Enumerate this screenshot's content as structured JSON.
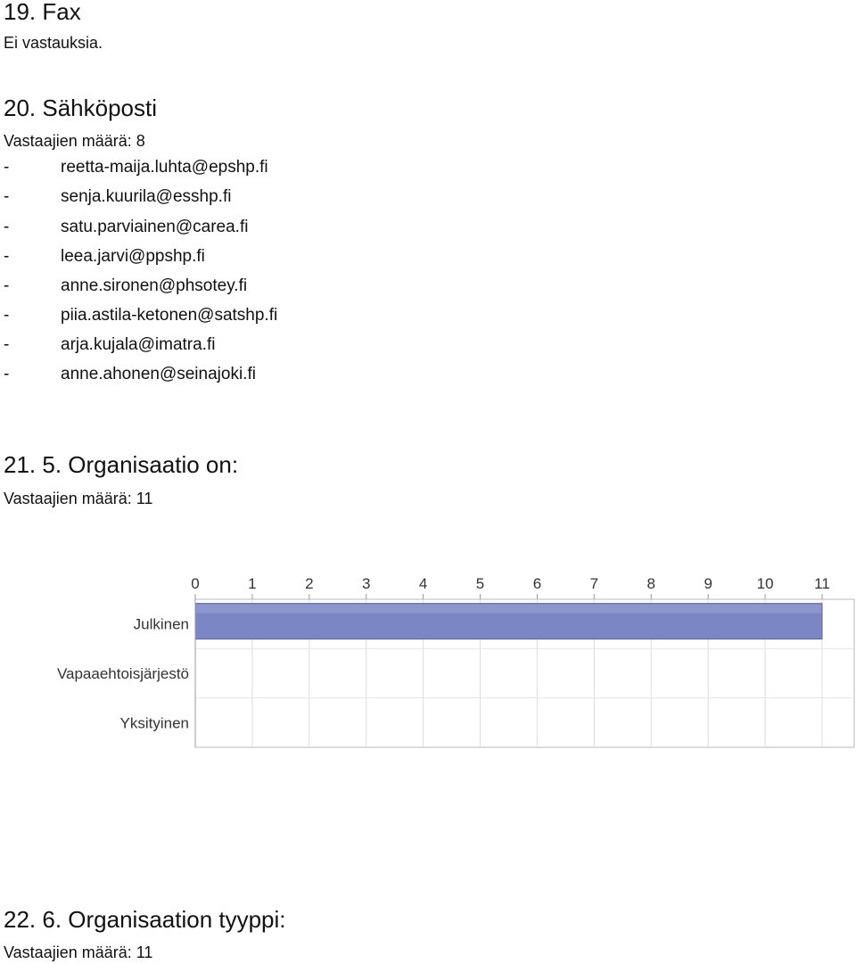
{
  "q19": {
    "title": "19. Fax",
    "text": "Ei vastauksia."
  },
  "q20": {
    "title": "20. Sähköposti",
    "count": "Vastaajien määrä: 8",
    "dash": "-",
    "items": [
      "reetta-maija.luhta@epshp.fi",
      "senja.kuurila@esshp.fi",
      "satu.parviainen@carea.fi",
      "leea.jarvi@ppshp.fi",
      "anne.sironen@phsotey.fi",
      "piia.astila-ketonen@satshp.fi",
      "arja.kujala@imatra.fi",
      "anne.ahonen@seinajoki.fi"
    ]
  },
  "q21": {
    "title": "21. 5. Organisaatio on:",
    "count": "Vastaajien määrä: 11"
  },
  "q22": {
    "title": "22. 6. Organisaation tyyppi:",
    "count": "Vastaajien määrä: 11"
  },
  "chart_data": {
    "type": "bar",
    "orientation": "horizontal",
    "categories": [
      "Julkinen",
      "Vapaaehtoisjärjestö",
      "Yksityinen"
    ],
    "values": [
      11,
      0,
      0
    ],
    "xlim": [
      0,
      11
    ],
    "xticks": [
      "0",
      "1",
      "2",
      "3",
      "4",
      "5",
      "6",
      "7",
      "8",
      "9",
      "10",
      "11"
    ],
    "axis_position": "top",
    "grid": true,
    "legend": "none",
    "bar_color": "#7b86c4",
    "title": "",
    "xlabel": "",
    "ylabel": ""
  }
}
